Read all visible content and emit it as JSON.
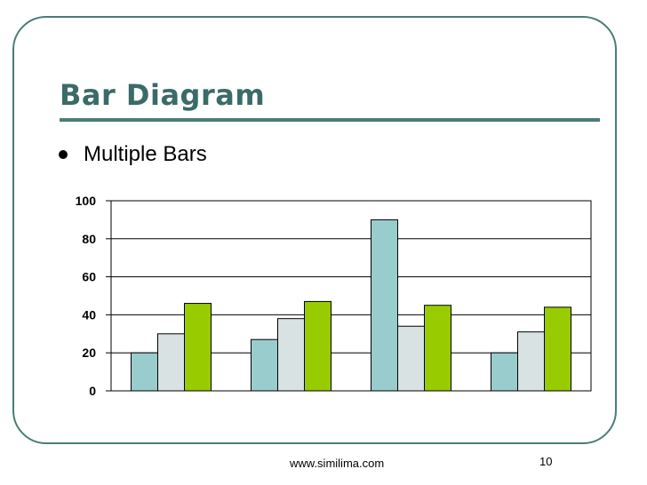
{
  "slide": {
    "title": "Bar Diagram",
    "bullet": "Multiple Bars",
    "footer_url": "www.similima.com",
    "slide_number": "10"
  },
  "chart_data": {
    "type": "bar",
    "categories": [
      "",
      "",
      "",
      ""
    ],
    "series": [
      {
        "color": "#99cccc",
        "values": [
          20,
          27,
          90,
          20
        ]
      },
      {
        "color": "#d9e2e2",
        "values": [
          30,
          38,
          34,
          31
        ]
      },
      {
        "color": "#99cc00",
        "values": [
          46,
          47,
          45,
          44
        ]
      }
    ],
    "ylim": [
      0,
      100
    ],
    "yticks": [
      "0",
      "20",
      "40",
      "60",
      "80",
      "100"
    ],
    "grid": true,
    "legend": false
  }
}
